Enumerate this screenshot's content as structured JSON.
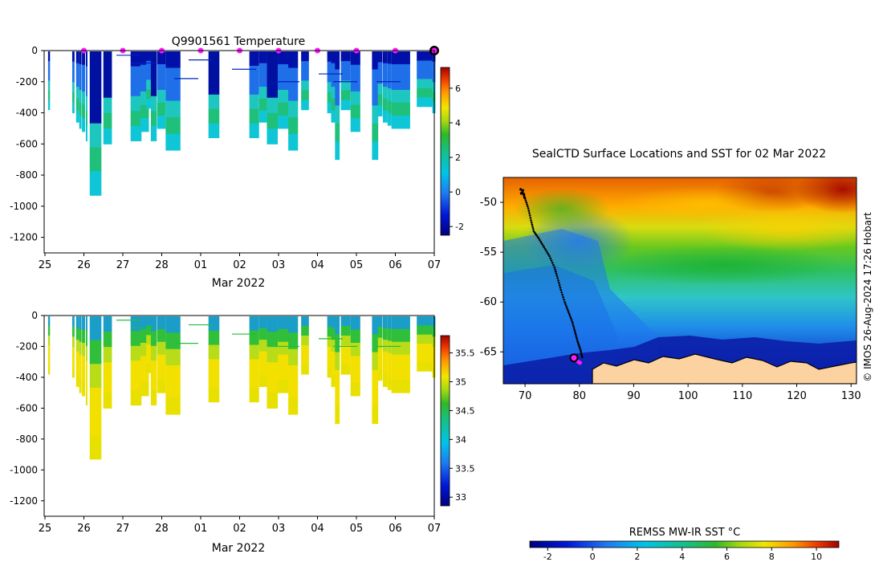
{
  "chart_data": [
    {
      "type": "heatmap",
      "title": "Q9901561  Temperature",
      "variable": "temperature",
      "xlabel": "Mar 2022",
      "x_tick_labels": [
        "25",
        "26",
        "27",
        "28",
        "01",
        "02",
        "03",
        "04",
        "05",
        "06",
        "07"
      ],
      "x_range_days": [
        0,
        10.1
      ],
      "ylim": [
        -1300,
        0
      ],
      "y_ticks": [
        0,
        -200,
        -400,
        -600,
        -800,
        -1000,
        -1200
      ],
      "colorbar": {
        "min": -2.5,
        "max": 7.2,
        "ticks": [
          -2,
          0,
          2,
          4,
          6
        ]
      },
      "surface_markers_day": [
        1,
        2,
        3,
        4,
        5,
        6,
        7,
        8,
        9
      ],
      "last_position_marker_day": 10.0,
      "legend": "",
      "grid": false
    },
    {
      "type": "heatmap",
      "title": "",
      "variable": "salinity",
      "xlabel": "Mar 2022",
      "x_tick_labels": [
        "25",
        "26",
        "27",
        "28",
        "01",
        "02",
        "03",
        "04",
        "05",
        "06",
        "07"
      ],
      "x_range_days": [
        0,
        10.1
      ],
      "ylim": [
        -1300,
        0
      ],
      "y_ticks": [
        0,
        -200,
        -400,
        -600,
        -800,
        -1000,
        -1200
      ],
      "colorbar": {
        "min": 32.85,
        "max": 35.8,
        "ticks": [
          33,
          33.5,
          34,
          34.5,
          35,
          35.5
        ]
      },
      "legend": "",
      "grid": false
    },
    {
      "type": "heatmap",
      "title": "SealCTD Surface Locations and SST for 02 Mar 2022",
      "xlabel": "",
      "ylabel": "",
      "xlim": [
        66,
        131
      ],
      "ylim": [
        -68.2,
        -47.5
      ],
      "x_ticks": [
        70,
        80,
        90,
        100,
        110,
        120,
        130
      ],
      "y_ticks": [
        -50,
        -55,
        -60,
        -65
      ],
      "colorbar": {
        "label": "REMSS MW-IR SST °C",
        "min": -2.8,
        "max": 11,
        "ticks": [
          -2,
          0,
          2,
          4,
          6,
          8,
          10
        ]
      },
      "track": [
        [
          69.5,
          -48.9
        ],
        [
          70.0,
          -49.6
        ],
        [
          70.6,
          -50.6
        ],
        [
          71.1,
          -51.8
        ],
        [
          71.6,
          -52.9
        ],
        [
          72.5,
          -53.6
        ],
        [
          73.5,
          -54.5
        ],
        [
          74.5,
          -55.4
        ],
        [
          75.4,
          -56.5
        ],
        [
          76.0,
          -57.6
        ],
        [
          76.6,
          -58.8
        ],
        [
          77.3,
          -60.0
        ],
        [
          78.0,
          -61.0
        ],
        [
          78.7,
          -62.0
        ],
        [
          79.2,
          -63.0
        ],
        [
          79.7,
          -64.0
        ],
        [
          80.2,
          -64.8
        ],
        [
          80.6,
          -65.7
        ]
      ],
      "current_position": [
        79.0,
        -65.6
      ],
      "recent_positions": [
        [
          79.8,
          -66.0
        ],
        [
          80.1,
          -66.1
        ]
      ],
      "side_annotation": "© IMOS 26-Aug-2024 17:26 Hobart"
    }
  ]
}
